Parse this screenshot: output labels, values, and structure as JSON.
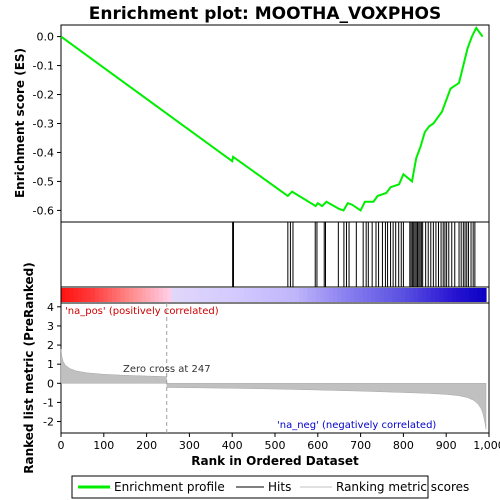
{
  "chart_data": {
    "type": "line",
    "title": "Enrichment plot: MOOTHA_VOXPHOS",
    "top_panel": {
      "ylabel": "Enrichment score (ES)",
      "ylim": [
        -0.64,
        0.04
      ],
      "yticks": [
        0.0,
        -0.1,
        -0.2,
        -0.3,
        -0.4,
        -0.5,
        -0.6
      ],
      "ytick_labels": [
        "0.0",
        "-0.1",
        "-0.2",
        "-0.3",
        "-0.4",
        "-0.5",
        "-0.6"
      ],
      "series": [
        {
          "name": "Enrichment profile",
          "color": "#00ee00",
          "x": [
            0,
            400,
            402,
            530,
            540,
            595,
            600,
            610,
            620,
            650,
            660,
            670,
            680,
            700,
            710,
            730,
            740,
            760,
            770,
            790,
            800,
            820,
            830,
            840,
            850,
            860,
            870,
            880,
            890,
            900,
            910,
            930,
            940,
            950,
            960,
            970,
            985
          ],
          "y": [
            0.0,
            -0.43,
            -0.415,
            -0.55,
            -0.535,
            -0.585,
            -0.575,
            -0.585,
            -0.57,
            -0.595,
            -0.6,
            -0.575,
            -0.58,
            -0.6,
            -0.57,
            -0.57,
            -0.55,
            -0.54,
            -0.52,
            -0.51,
            -0.475,
            -0.5,
            -0.42,
            -0.38,
            -0.33,
            -0.31,
            -0.3,
            -0.28,
            -0.26,
            -0.22,
            -0.18,
            -0.16,
            -0.1,
            -0.04,
            0.0,
            0.03,
            0.0
          ]
        }
      ]
    },
    "hits": {
      "name": "Hits",
      "positions": [
        401,
        403,
        530,
        536,
        542,
        594,
        598,
        615,
        618,
        648,
        661,
        667,
        673,
        690,
        706,
        713,
        718,
        727,
        736,
        742,
        751,
        758,
        763,
        770,
        776,
        782,
        789,
        795,
        800,
        815,
        818,
        821,
        824,
        827,
        830,
        833,
        836,
        839,
        842,
        845,
        852,
        858,
        864,
        870,
        876,
        882,
        888,
        893,
        897,
        901,
        906,
        913,
        920,
        930,
        935,
        940,
        944,
        948,
        952,
        958,
        963,
        967
      ]
    },
    "bottom_panel": {
      "ylabel": "Ranked list metric (PreRanked)",
      "xlabel": "Rank in Ordered Dataset",
      "xlim": [
        0,
        1000
      ],
      "xticks": [
        0,
        100,
        200,
        300,
        400,
        500,
        600,
        700,
        800,
        900,
        1000
      ],
      "xtick_labels": [
        "0",
        "100",
        "200",
        "300",
        "400",
        "500",
        "600",
        "700",
        "800",
        "900",
        "1,000"
      ],
      "ylim": [
        -2.6,
        4.2
      ],
      "yticks": [
        4,
        3,
        2,
        1,
        0,
        -1,
        -2
      ],
      "ytick_labels": [
        "4",
        "3",
        "2",
        "1",
        "0",
        "-1",
        "-2"
      ],
      "series": [
        {
          "name": "Ranking metric scores",
          "color": "#c0c0c0",
          "x": [
            0,
            2,
            5,
            10,
            20,
            35,
            60,
            100,
            150,
            200,
            246,
            248,
            300,
            400,
            500,
            600,
            700,
            800,
            860,
            900,
            930,
            950,
            965,
            975,
            982,
            986,
            990,
            993
          ],
          "y": [
            1.8,
            1.4,
            1.15,
            0.95,
            0.78,
            0.65,
            0.55,
            0.47,
            0.42,
            0.38,
            0.35,
            -0.22,
            -0.23,
            -0.26,
            -0.3,
            -0.35,
            -0.41,
            -0.48,
            -0.53,
            -0.58,
            -0.65,
            -0.75,
            -0.9,
            -1.1,
            -1.35,
            -1.6,
            -2.0,
            -2.4
          ]
        }
      ],
      "zero_cross": 247,
      "annotations": {
        "pos": "'na_pos' (positively correlated)",
        "neg": "'na_neg' (negatively correlated)",
        "zero": "Zero cross at 247"
      }
    },
    "legend": {
      "placement": "bottom",
      "items": [
        "Enrichment profile",
        "Hits",
        "Ranking metric scores"
      ]
    },
    "colors": {
      "profile": "#00ee00",
      "hits": "#000000",
      "metric": "#c0c0c0",
      "pos_label": "#cc0000",
      "neg_label": "#0000cc"
    }
  }
}
